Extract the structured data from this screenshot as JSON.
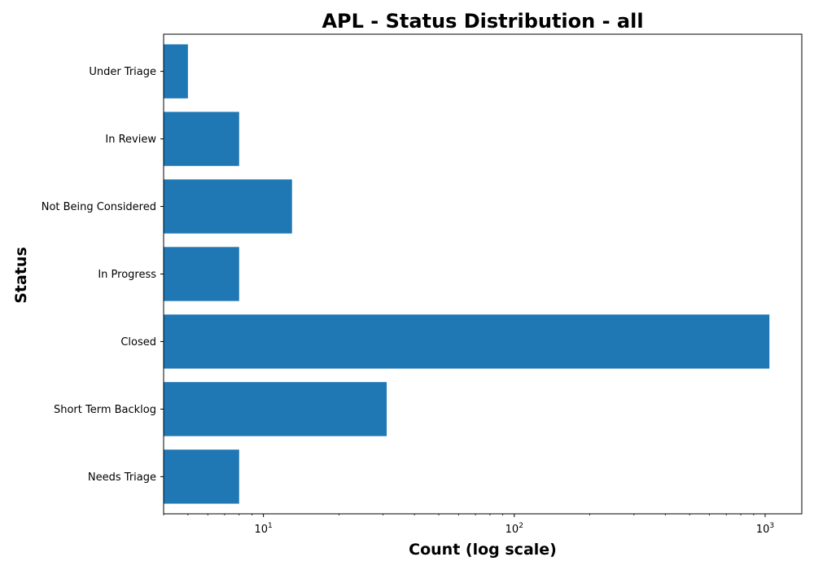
{
  "chart_data": {
    "type": "bar",
    "orientation": "horizontal",
    "title": "APL - Status Distribution - all",
    "xlabel": "Count (log scale)",
    "ylabel": "Status",
    "xscale": "log",
    "xlim": [
      4,
      1400
    ],
    "x_ticks": [
      {
        "value": 10,
        "base": "10",
        "exp": "1"
      },
      {
        "value": 100,
        "base": "10",
        "exp": "2"
      },
      {
        "value": 1000,
        "base": "10",
        "exp": "3"
      }
    ],
    "categories": [
      "Needs Triage",
      "Short Term Backlog",
      "Closed",
      "In Progress",
      "Not Being Considered",
      "In Review",
      "Under Triage"
    ],
    "values": [
      8,
      31,
      1040,
      8,
      13,
      8,
      5
    ],
    "bar_color": "#1f77b4",
    "grid": false,
    "legend": "none"
  }
}
